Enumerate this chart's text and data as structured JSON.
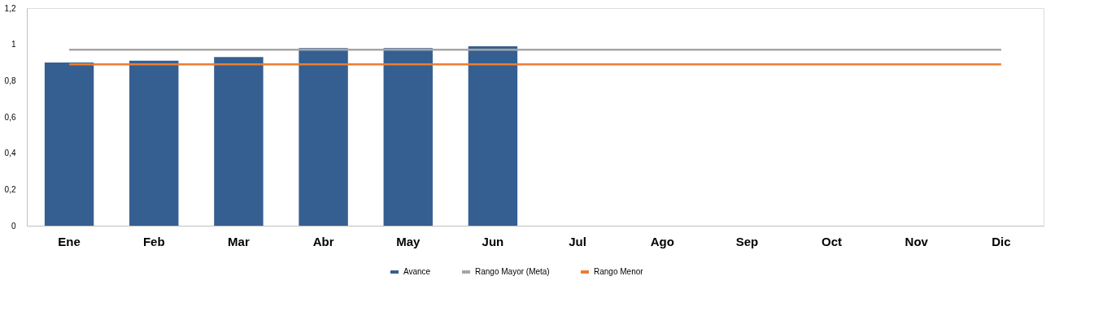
{
  "chart_data": {
    "type": "bar",
    "categories": [
      "Ene",
      "Feb",
      "Mar",
      "Abr",
      "May",
      "Jun",
      "Jul",
      "Ago",
      "Sep",
      "Oct",
      "Nov",
      "Dic"
    ],
    "series": [
      {
        "name": "Avance",
        "color": "#355f91",
        "values": [
          0.9,
          0.91,
          0.93,
          0.98,
          0.98,
          0.99,
          null,
          null,
          null,
          null,
          null,
          null
        ]
      },
      {
        "name": "Rango Mayor (Meta)",
        "type": "line",
        "color": "#a5a5a5",
        "values": [
          0.97,
          0.97,
          0.97,
          0.97,
          0.97,
          0.97,
          0.97,
          0.97,
          0.97,
          0.97,
          0.97,
          0.97
        ]
      },
      {
        "name": "Rango Menor",
        "type": "line",
        "color": "#ed7d31",
        "values": [
          0.89,
          0.89,
          0.89,
          0.89,
          0.89,
          0.89,
          0.89,
          0.89,
          0.89,
          0.89,
          0.89,
          0.89
        ]
      }
    ],
    "ylim": [
      0,
      1.2
    ],
    "yticks": [
      0,
      {
        "value": 0.2,
        "label": "0,2"
      },
      {
        "value": 0.4,
        "label": "0,4"
      },
      {
        "value": 0.6,
        "label": "0,6"
      },
      {
        "value": 0.8,
        "label": "0,8"
      },
      1,
      {
        "value": 1.2,
        "label": "1,2"
      }
    ],
    "grid": false,
    "legend": "bottom"
  }
}
